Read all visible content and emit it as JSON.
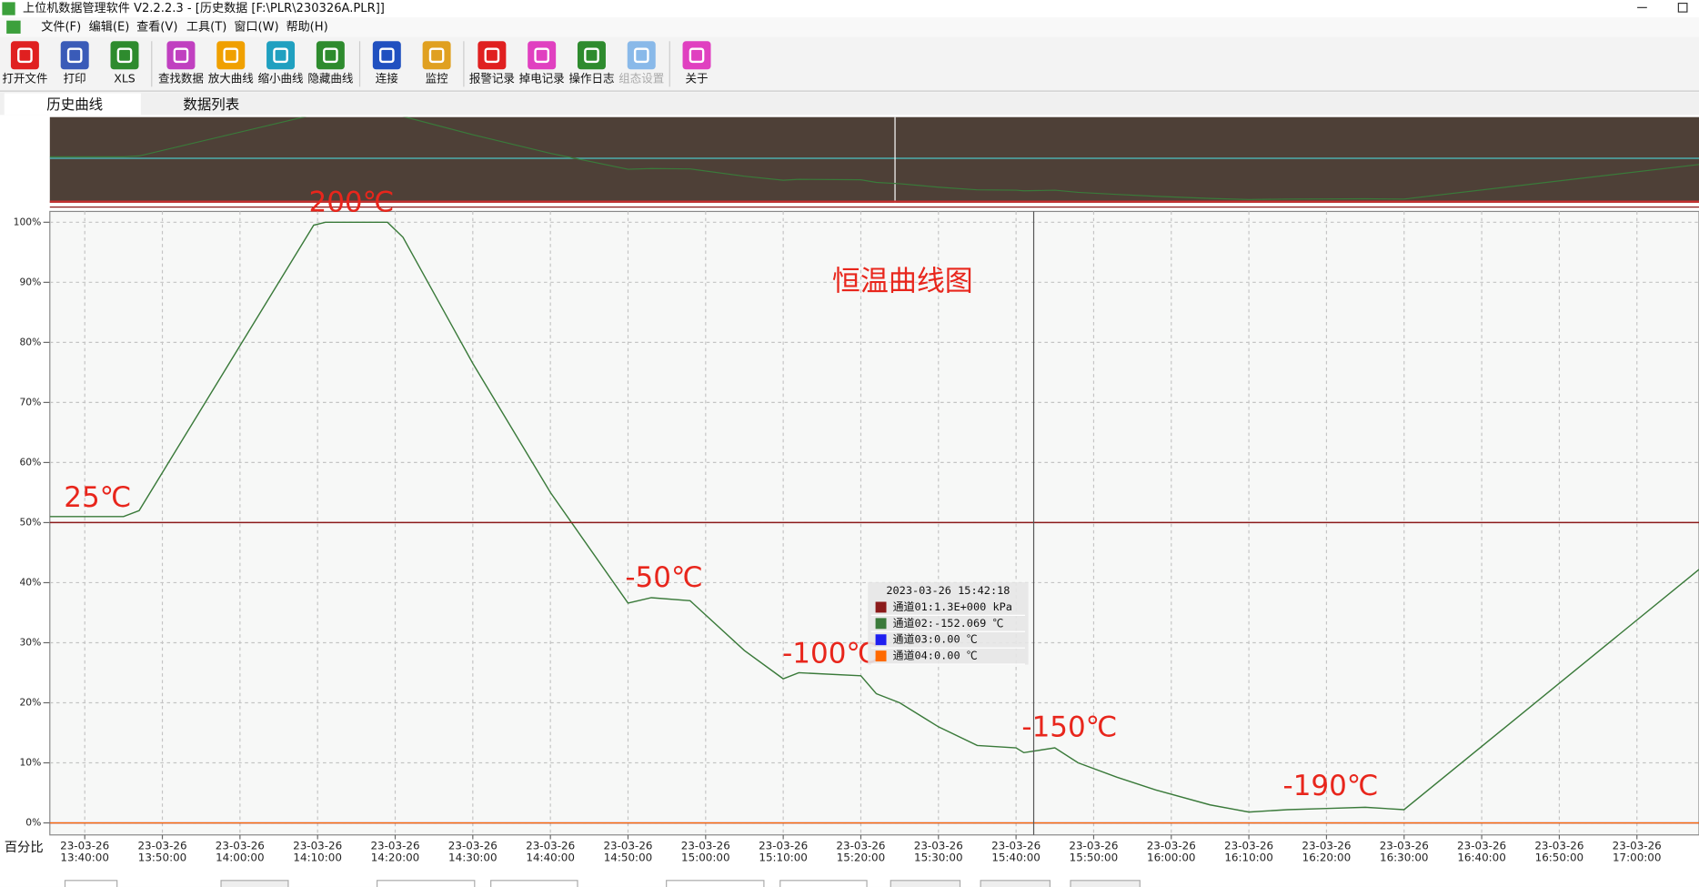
{
  "window_title": "上位机数据管理软件 V2.2.2.3 - [历史数据 [F:\\PLR\\230326A.PLR]]",
  "menu": [
    "文件(F)",
    "编辑(E)",
    "查看(V)",
    "工具(T)",
    "窗口(W)",
    "帮助(H)"
  ],
  "toolbar": [
    "打开文件",
    "打印",
    "XLS",
    "查找数据",
    "放大曲线",
    "缩小曲线",
    "隐藏曲线",
    "连接",
    "监控",
    "报警记录",
    "掉电记录",
    "操作日志",
    "组态设置",
    "关于"
  ],
  "tabs": [
    "历史曲线",
    "数据列表"
  ],
  "chart_data": {
    "type": "line",
    "title": "恒温曲线图",
    "y_label": "百分比",
    "annotations": [
      "200℃",
      "25℃",
      "-50℃",
      "-100℃",
      "-150℃",
      "-190℃"
    ],
    "x": [
      "23-03-26 13:35:30",
      "23-03-26 13:45:00",
      "23-03-26 13:47:00",
      "23-03-26 14:09:30",
      "23-03-26 14:11:00",
      "23-03-26 14:19:00",
      "23-03-26 14:21:00",
      "23-03-26 14:30:00",
      "23-03-26 14:40:00",
      "23-03-26 14:50:00",
      "23-03-26 14:53:00",
      "23-03-26 14:58:00",
      "23-03-26 15:05:00",
      "23-03-26 15:10:00",
      "23-03-26 15:12:00",
      "23-03-26 15:20:00",
      "23-03-26 15:22:00",
      "23-03-26 15:25:00",
      "23-03-26 15:30:00",
      "23-03-26 15:35:00",
      "23-03-26 15:40:00",
      "23-03-26 15:41:00",
      "23-03-26 15:45:00",
      "23-03-26 15:48:00",
      "23-03-26 15:53:00",
      "23-03-26 15:58:00",
      "23-03-26 16:05:00",
      "23-03-26 16:10:00",
      "23-03-26 16:15:00",
      "23-03-26 16:20:00",
      "23-03-26 16:25:00",
      "23-03-26 16:30:00",
      "23-03-26 17:08:00"
    ],
    "series": [
      {
        "name": "通道01",
        "color": "#8b1a1a",
        "values": [
          50,
          50,
          50,
          50,
          50,
          50,
          50,
          50,
          50,
          50,
          50,
          50,
          50,
          50,
          50,
          50,
          50,
          50,
          50,
          50,
          50,
          50,
          50,
          50,
          50,
          50,
          50,
          50,
          50,
          50,
          50,
          50,
          50
        ]
      },
      {
        "name": "通道02",
        "color": "#3a7a3a",
        "values": [
          51,
          51,
          52,
          99.5,
          100,
          100,
          97.5,
          76.5,
          55,
          36.6,
          37.5,
          37,
          28.7,
          24,
          25,
          24.5,
          21.5,
          20,
          16,
          12.9,
          12.5,
          11.7,
          12.5,
          10,
          7.6,
          5.5,
          3,
          1.8,
          2.2,
          2.4,
          2.6,
          2.2,
          42.2
        ]
      },
      {
        "name": "通道03",
        "color": "#1e1ef0",
        "values": [
          0,
          0,
          0,
          0,
          0,
          0,
          0,
          0,
          0,
          0,
          0,
          0,
          0,
          0,
          0,
          0,
          0,
          0,
          0,
          0,
          0,
          0,
          0,
          0,
          0,
          0,
          0,
          0,
          0,
          0,
          0,
          0,
          0
        ]
      },
      {
        "name": "通道04",
        "color": "#ff6a00",
        "values": [
          0,
          0,
          0,
          0,
          0,
          0,
          0,
          0,
          0,
          0,
          0,
          0,
          0,
          0,
          0,
          0,
          0,
          0,
          0,
          0,
          0,
          0,
          0,
          0,
          0,
          0,
          0,
          0,
          0,
          0,
          0,
          0,
          0
        ]
      }
    ],
    "xlim": [
      "23-03-26 13:35:30",
      "23-03-26 17:08:00"
    ],
    "xticks": [
      "23-03-26 13:40:00",
      "23-03-26 13:50:00",
      "23-03-26 14:00:00",
      "23-03-26 14:10:00",
      "23-03-26 14:20:00",
      "23-03-26 14:30:00",
      "23-03-26 14:40:00",
      "23-03-26 14:50:00",
      "23-03-26 15:00:00",
      "23-03-26 15:10:00",
      "23-03-26 15:20:00",
      "23-03-26 15:30:00",
      "23-03-26 15:40:00",
      "23-03-26 15:50:00",
      "23-03-26 16:00:00",
      "23-03-26 16:10:00",
      "23-03-26 16:20:00",
      "23-03-26 16:30:00",
      "23-03-26 16:40:00",
      "23-03-26 16:50:00",
      "23-03-26 17:00:00"
    ],
    "ylim": [
      -2,
      101.8
    ],
    "yticks": [
      {
        "value": 0,
        "label": "0%"
      },
      {
        "value": 10,
        "label": "10%"
      },
      {
        "value": 20,
        "label": "20%"
      },
      {
        "value": 30,
        "label": "30%"
      },
      {
        "value": 40,
        "label": "40%"
      },
      {
        "value": 50,
        "label": "50%"
      },
      {
        "value": 60,
        "label": "60%"
      },
      {
        "value": 70,
        "label": "70%"
      },
      {
        "value": 80,
        "label": "80%"
      },
      {
        "value": 90,
        "label": "90%"
      },
      {
        "value": 100,
        "label": "100%"
      }
    ],
    "grid": true,
    "tooltip": {
      "time": "2023-03-26 15:42:18",
      "rows": [
        "通道01:1.3E+000 kPa",
        "通道02:-152.069 ℃",
        "通道03:0.00 ℃",
        "通道04:0.00 ℃"
      ]
    }
  }
}
